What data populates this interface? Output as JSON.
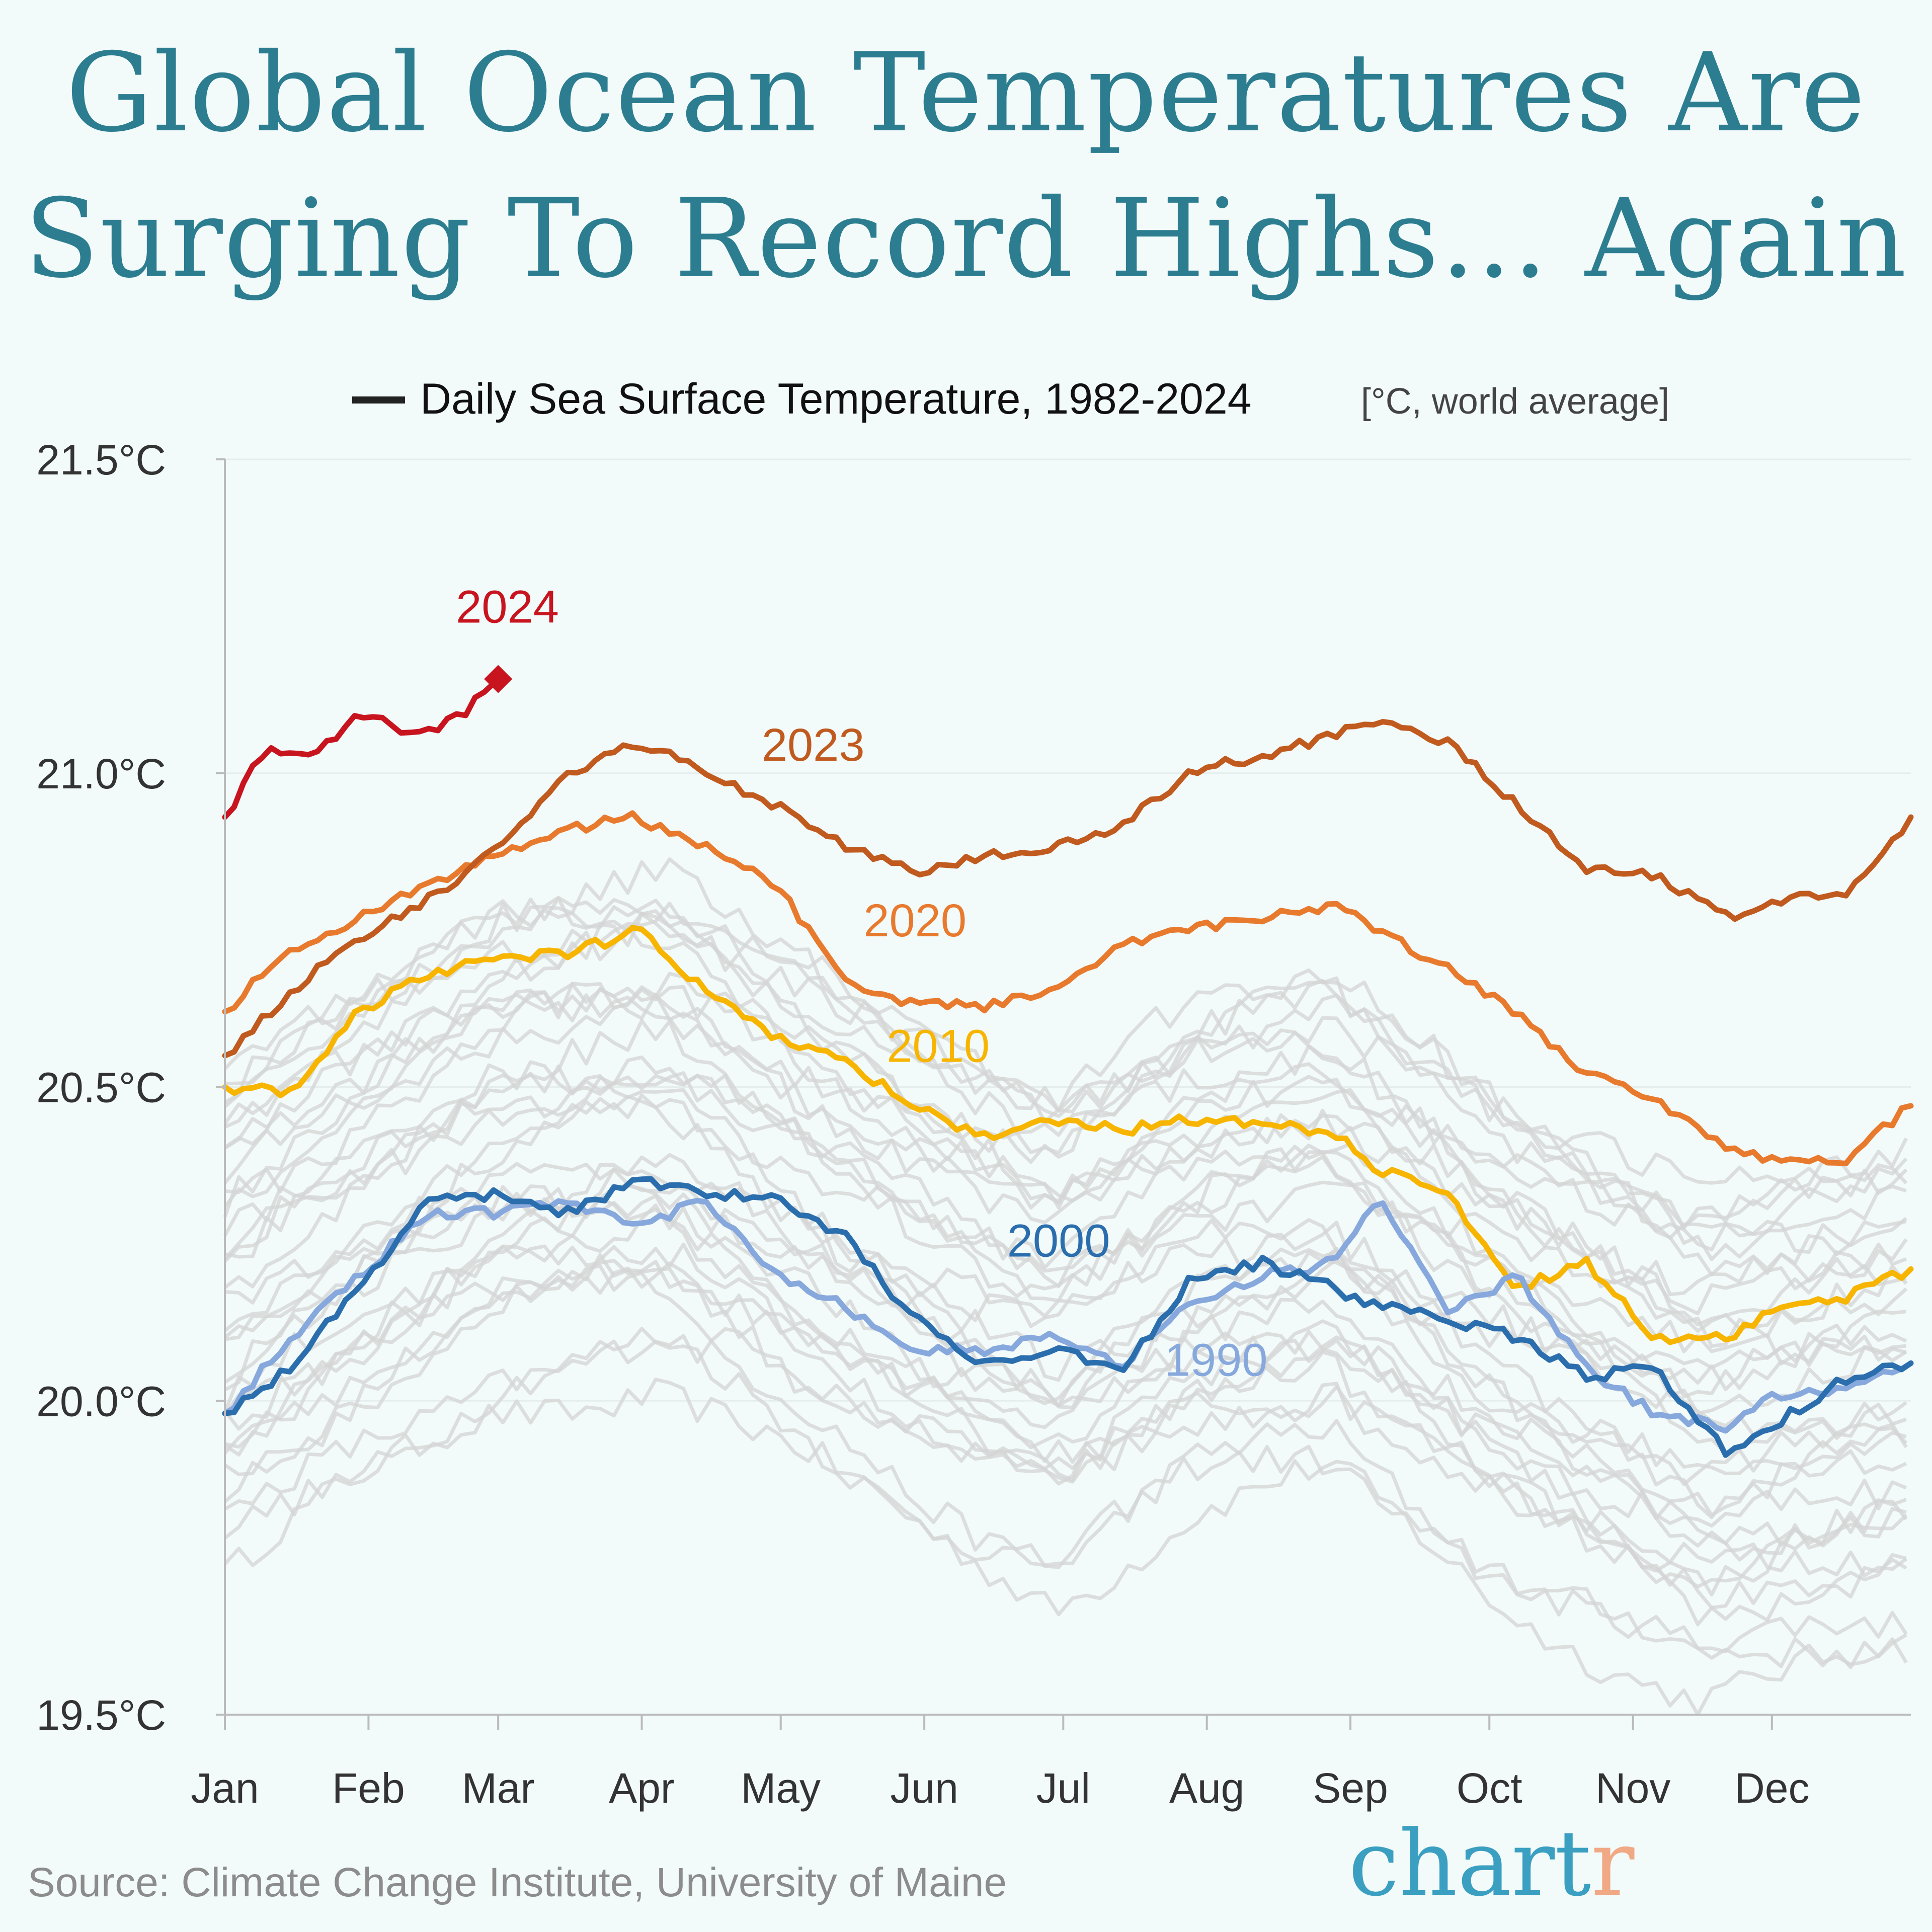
{
  "title": {
    "line1": "Global Ocean Temperatures Are",
    "line2": "Surging To Record Highs… Again"
  },
  "source": "Source: Climate Change Institute, University of Maine",
  "brand": {
    "main": "chart",
    "accent": "r"
  },
  "colors": {
    "background": "#f2fafa",
    "title": "#2c7d90",
    "history": "#d4d4d4",
    "y2024": "#c8141e",
    "y2023": "#c05a1e",
    "y2020": "#e87a2e",
    "y2010": "#f7b500",
    "y2000": "#2b6ead",
    "y1990": "#86a8dc",
    "axis": "#bbbbbb"
  },
  "chart_data": {
    "type": "line",
    "legend": {
      "label": "Daily Sea Surface Temperature, 1982-2024",
      "unit": "[°C, world average]"
    },
    "x_ticks": [
      "Jan",
      "Feb",
      "Mar",
      "Apr",
      "May",
      "Jun",
      "Jul",
      "Aug",
      "Sep",
      "Oct",
      "Nov",
      "Dec"
    ],
    "y_ticks": [
      "19.5°C",
      "20.0°C",
      "20.5°C",
      "21.0°C",
      "21.5°C"
    ],
    "ylim": [
      19.5,
      21.5
    ],
    "x_unit": "day of year",
    "grid": "horizontal",
    "series": [
      {
        "name": "2023",
        "color": "#c05a1e",
        "x": [
          1,
          15,
          30,
          45,
          60,
          75,
          90,
          105,
          120,
          135,
          150,
          165,
          180,
          195,
          210,
          225,
          240,
          250,
          265,
          280,
          295,
          310,
          325,
          335,
          350,
          365
        ],
        "y": [
          20.55,
          20.65,
          20.74,
          20.8,
          20.88,
          21.0,
          21.05,
          21.0,
          20.95,
          20.88,
          20.84,
          20.87,
          20.88,
          20.92,
          21.0,
          21.03,
          21.06,
          21.08,
          21.05,
          20.95,
          20.85,
          20.84,
          20.77,
          20.8,
          20.8,
          20.93
        ]
      },
      {
        "name": "2020",
        "color": "#e87a2e",
        "x": [
          1,
          15,
          30,
          45,
          60,
          75,
          90,
          105,
          120,
          135,
          150,
          165,
          180,
          195,
          210,
          225,
          240,
          250,
          265,
          280,
          295,
          310,
          325,
          335,
          350,
          365
        ],
        "y": [
          20.62,
          20.72,
          20.77,
          20.82,
          20.87,
          20.91,
          20.93,
          20.88,
          20.82,
          20.67,
          20.63,
          20.63,
          20.66,
          20.73,
          20.75,
          20.77,
          20.79,
          20.75,
          20.69,
          20.62,
          20.52,
          20.48,
          20.4,
          20.38,
          20.38,
          20.47
        ]
      },
      {
        "name": "2010",
        "color": "#f7b500",
        "x": [
          1,
          15,
          30,
          45,
          60,
          75,
          90,
          105,
          120,
          135,
          150,
          165,
          180,
          195,
          210,
          225,
          240,
          250,
          265,
          280,
          295,
          310,
          325,
          335,
          350,
          365
        ],
        "y": [
          20.5,
          20.49,
          20.62,
          20.68,
          20.71,
          20.71,
          20.75,
          20.65,
          20.58,
          20.54,
          20.47,
          20.42,
          20.45,
          20.43,
          20.45,
          20.44,
          20.43,
          20.37,
          20.33,
          20.18,
          20.22,
          20.1,
          20.1,
          20.14,
          20.16,
          20.21
        ]
      },
      {
        "name": "2000",
        "color": "#2b6ead",
        "x": [
          1,
          15,
          30,
          45,
          60,
          75,
          90,
          105,
          120,
          135,
          150,
          165,
          180,
          195,
          210,
          225,
          240,
          250,
          265,
          280,
          295,
          310,
          325,
          335,
          350,
          365
        ],
        "y": [
          19.98,
          20.05,
          20.18,
          20.32,
          20.33,
          20.3,
          20.35,
          20.33,
          20.32,
          20.26,
          20.13,
          20.06,
          20.08,
          20.05,
          20.2,
          20.22,
          20.18,
          20.15,
          20.13,
          20.1,
          20.04,
          20.05,
          19.92,
          19.96,
          20.03,
          20.06
        ]
      },
      {
        "name": "1990",
        "color": "#86a8dc",
        "x": [
          1,
          15,
          30,
          45,
          60,
          75,
          90,
          105,
          120,
          135,
          150,
          165,
          180,
          195,
          210,
          225,
          240,
          250,
          265,
          280,
          295,
          310,
          325,
          335,
          350,
          365
        ],
        "y": [
          19.98,
          20.1,
          20.2,
          20.3,
          20.3,
          20.32,
          20.28,
          20.32,
          20.2,
          20.15,
          20.08,
          20.08,
          20.1,
          20.06,
          20.16,
          20.2,
          20.22,
          20.32,
          20.14,
          20.2,
          20.05,
          19.98,
          19.96,
          20.01,
          20.02,
          20.06
        ]
      },
      {
        "name": "2024",
        "color": "#c8141e",
        "x": [
          1,
          10,
          20,
          30,
          40,
          50,
          60
        ],
        "y": [
          20.93,
          21.04,
          21.02,
          21.1,
          21.06,
          21.08,
          21.15
        ]
      }
    ],
    "history_count": 34,
    "annotations": [
      {
        "text": "2024",
        "x": 62,
        "y": 21.24
      },
      {
        "text": "2023",
        "x": 128,
        "y": 21.02
      },
      {
        "text": "2020",
        "x": 150,
        "y": 20.74
      },
      {
        "text": "2010",
        "x": 155,
        "y": 20.54
      },
      {
        "text": "2000",
        "x": 181,
        "y": 20.23
      },
      {
        "text": "1990",
        "x": 215,
        "y": 20.04
      }
    ]
  }
}
